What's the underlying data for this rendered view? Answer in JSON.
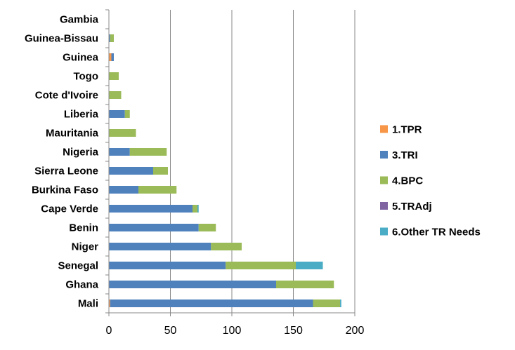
{
  "chart_data": {
    "type": "bar",
    "orientation": "horizontal",
    "stacked": true,
    "categories": [
      "Mali",
      "Ghana",
      "Senegal",
      "Niger",
      "Benin",
      "Cape Verde",
      "Burkina Faso",
      "Sierra Leone",
      "Nigeria",
      "Mauritania",
      "Liberia",
      "Cote d'Ivoire",
      "Togo",
      "Guinea",
      "Guinea-Bissau",
      "Gambia"
    ],
    "series": [
      {
        "name": "1.TPR",
        "color": "#F79646",
        "values": [
          1,
          0,
          0,
          0,
          0,
          0,
          0,
          0,
          0,
          0,
          0,
          0,
          0,
          2,
          0,
          0
        ]
      },
      {
        "name": "3.TRI",
        "color": "#4F81BD",
        "values": [
          165,
          136,
          95,
          83,
          73,
          68,
          24,
          36,
          17,
          0,
          13,
          0,
          0,
          2,
          1,
          0
        ]
      },
      {
        "name": "4.BPC",
        "color": "#9BBB59",
        "values": [
          22,
          47,
          57,
          25,
          14,
          4,
          31,
          12,
          30,
          22,
          4,
          10,
          8,
          0,
          3,
          0
        ]
      },
      {
        "name": "5.TRAdj",
        "color": "#8064A2",
        "values": [
          0,
          0,
          0,
          0,
          0,
          0,
          0,
          0,
          0,
          0,
          0,
          0,
          0,
          0,
          0,
          0
        ]
      },
      {
        "name": "6.Other TR Needs",
        "color": "#4BACC6",
        "values": [
          1,
          0,
          22,
          0,
          0,
          1,
          0,
          0,
          0,
          0,
          0,
          0,
          0,
          0,
          0,
          0
        ]
      }
    ],
    "xlim": [
      0,
      200
    ],
    "x_ticks": [
      "0",
      "50",
      "100",
      "150",
      "200"
    ],
    "grid": "vertical",
    "legend_position": "right",
    "title": "",
    "xlabel": "",
    "ylabel": ""
  }
}
